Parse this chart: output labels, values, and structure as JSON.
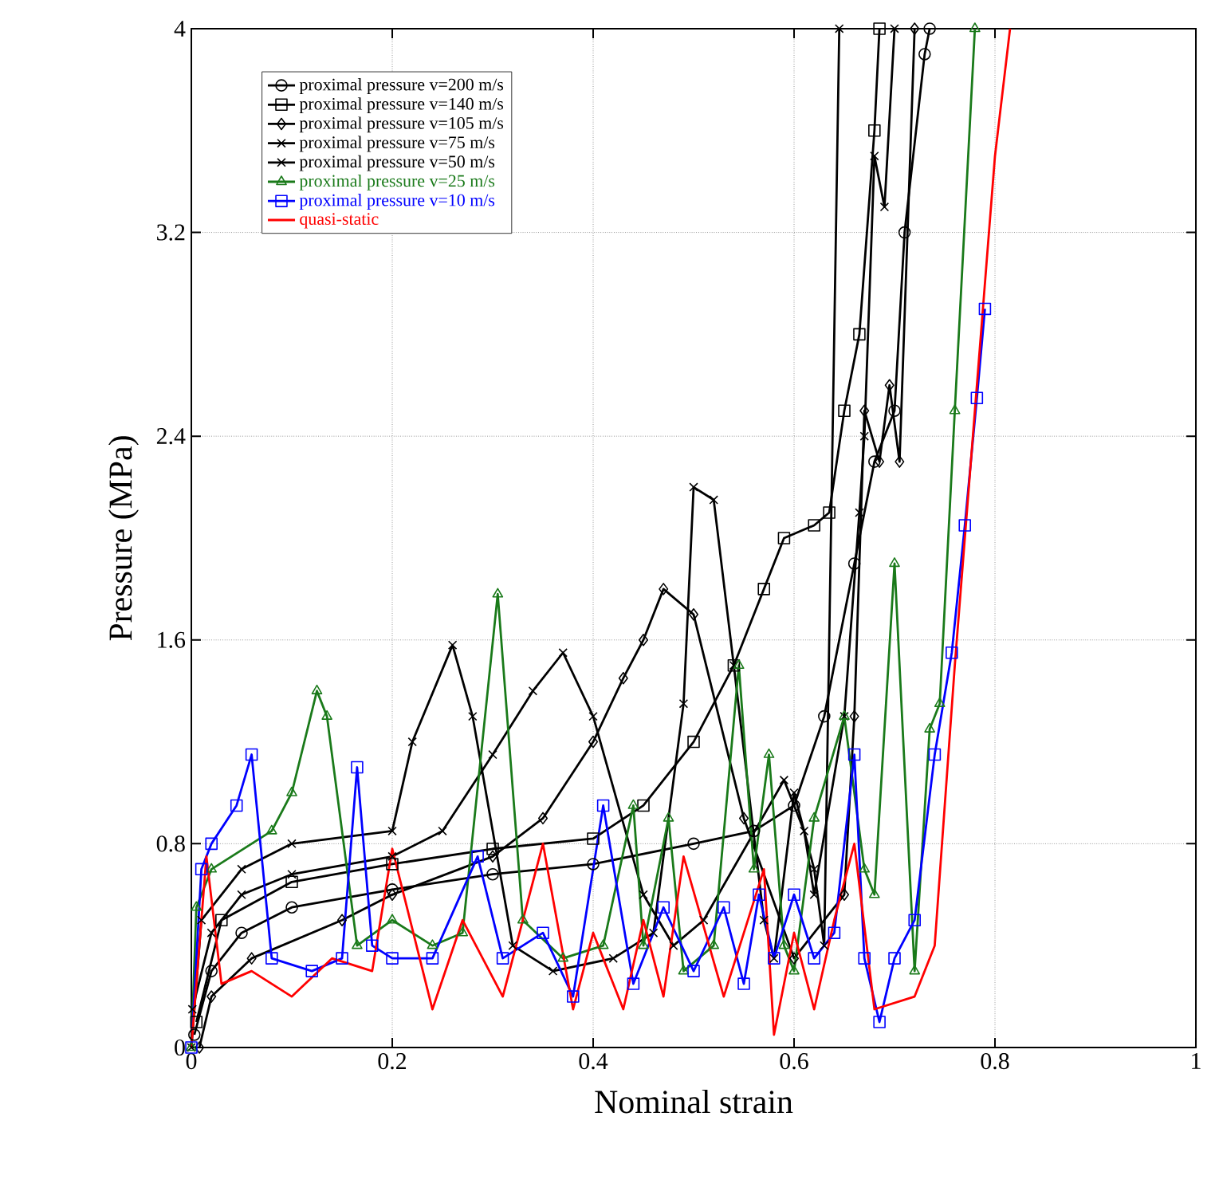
{
  "chart_data": {
    "type": "line",
    "xlabel": "Nominal strain",
    "ylabel": "Pressure (MPa)",
    "xlim": [
      0,
      1
    ],
    "ylim": [
      0,
      4
    ],
    "xticks": [
      0,
      0.2,
      0.4,
      0.6,
      0.8,
      1
    ],
    "yticks": [
      0,
      0.8,
      1.6,
      2.4,
      3.2,
      4
    ],
    "grid": true,
    "legend": "top left",
    "line_style": "solid",
    "series": [
      {
        "name": "proximal pressure v=200 m/s",
        "color": "#000000",
        "marker": "circle",
        "x": [
          0.003,
          0.02,
          0.05,
          0.1,
          0.2,
          0.3,
          0.4,
          0.5,
          0.56,
          0.6,
          0.63,
          0.66,
          0.68,
          0.7,
          0.71,
          0.73,
          0.735
        ],
        "values": [
          0.05,
          0.3,
          0.45,
          0.55,
          0.62,
          0.68,
          0.72,
          0.8,
          0.85,
          0.95,
          1.3,
          1.9,
          2.3,
          2.5,
          3.2,
          3.9,
          4
        ]
      },
      {
        "name": "proximal pressure v=140 m/s",
        "color": "#000000",
        "marker": "square",
        "x": [
          0.005,
          0.03,
          0.1,
          0.2,
          0.3,
          0.4,
          0.45,
          0.5,
          0.54,
          0.57,
          0.59,
          0.62,
          0.635,
          0.65,
          0.665,
          0.68,
          0.685
        ],
        "values": [
          0.1,
          0.5,
          0.65,
          0.72,
          0.78,
          0.82,
          0.95,
          1.2,
          1.5,
          1.8,
          2.0,
          2.05,
          2.1,
          2.5,
          2.8,
          3.6,
          4
        ]
      },
      {
        "name": "proximal pressure v=105 m/s",
        "color": "#000000",
        "marker": "diamond",
        "x": [
          0.008,
          0.02,
          0.06,
          0.15,
          0.2,
          0.3,
          0.35,
          0.4,
          0.43,
          0.45,
          0.47,
          0.5,
          0.55,
          0.6,
          0.65,
          0.66,
          0.67,
          0.685,
          0.695,
          0.705,
          0.72
        ],
        "values": [
          0,
          0.2,
          0.35,
          0.5,
          0.6,
          0.75,
          0.9,
          1.2,
          1.45,
          1.6,
          1.8,
          1.7,
          0.9,
          0.35,
          0.6,
          1.3,
          2.5,
          2.3,
          2.6,
          2.3,
          4
        ]
      },
      {
        "name": "proximal pressure v=75 m/s",
        "color": "#000000",
        "marker": "cross",
        "x": [
          0.001,
          0.02,
          0.05,
          0.1,
          0.2,
          0.25,
          0.3,
          0.34,
          0.37,
          0.4,
          0.45,
          0.48,
          0.51,
          0.59,
          0.61,
          0.62,
          0.65,
          0.665,
          0.67,
          0.68,
          0.69,
          0.7
        ],
        "values": [
          0.15,
          0.45,
          0.6,
          0.68,
          0.75,
          0.85,
          1.15,
          1.4,
          1.55,
          1.3,
          0.6,
          0.4,
          0.5,
          1.05,
          0.85,
          0.6,
          1.3,
          2.1,
          2.4,
          3.5,
          3.3,
          4
        ]
      },
      {
        "name": "proximal pressure v=50 m/s",
        "color": "#000000",
        "marker": "cross",
        "x": [
          0,
          0.01,
          0.05,
          0.1,
          0.2,
          0.22,
          0.26,
          0.28,
          0.32,
          0.36,
          0.42,
          0.46,
          0.49,
          0.5,
          0.52,
          0.54,
          0.57,
          0.58,
          0.6,
          0.62,
          0.63,
          0.645
        ],
        "values": [
          0,
          0.5,
          0.7,
          0.8,
          0.85,
          1.2,
          1.58,
          1.3,
          0.4,
          0.3,
          0.35,
          0.45,
          1.35,
          2.2,
          2.15,
          1.5,
          0.5,
          0.35,
          1.0,
          0.7,
          0.4,
          4
        ]
      },
      {
        "name": "proximal pressure v=25 m/s",
        "color": "#1a7a1a",
        "marker": "triangle",
        "x": [
          0,
          0.005,
          0.02,
          0.08,
          0.1,
          0.125,
          0.135,
          0.165,
          0.2,
          0.24,
          0.27,
          0.305,
          0.33,
          0.37,
          0.41,
          0.44,
          0.45,
          0.475,
          0.49,
          0.52,
          0.545,
          0.56,
          0.575,
          0.59,
          0.6,
          0.62,
          0.65,
          0.67,
          0.68,
          0.7,
          0.72,
          0.735,
          0.745,
          0.76,
          0.78
        ],
        "values": [
          0,
          0.55,
          0.7,
          0.85,
          1.0,
          1.4,
          1.3,
          0.4,
          0.5,
          0.4,
          0.45,
          1.78,
          0.5,
          0.35,
          0.4,
          0.95,
          0.4,
          0.9,
          0.3,
          0.4,
          1.5,
          0.7,
          1.15,
          0.4,
          0.3,
          0.9,
          1.3,
          0.7,
          0.6,
          1.9,
          0.3,
          1.25,
          1.35,
          2.5,
          4
        ]
      },
      {
        "name": "proximal pressure v=10 m/s",
        "color": "#0000ff",
        "marker": "square",
        "x": [
          0,
          0.01,
          0.02,
          0.045,
          0.06,
          0.08,
          0.12,
          0.15,
          0.165,
          0.18,
          0.2,
          0.24,
          0.285,
          0.31,
          0.35,
          0.38,
          0.41,
          0.44,
          0.47,
          0.5,
          0.53,
          0.55,
          0.565,
          0.58,
          0.6,
          0.62,
          0.64,
          0.66,
          0.67,
          0.685,
          0.7,
          0.72,
          0.74,
          0.757,
          0.77,
          0.782,
          0.79
        ],
        "values": [
          0,
          0.7,
          0.8,
          0.95,
          1.15,
          0.35,
          0.3,
          0.35,
          1.1,
          0.4,
          0.35,
          0.35,
          0.75,
          0.35,
          0.45,
          0.2,
          0.95,
          0.25,
          0.55,
          0.3,
          0.55,
          0.25,
          0.6,
          0.35,
          0.6,
          0.35,
          0.45,
          1.15,
          0.35,
          0.1,
          0.35,
          0.5,
          1.15,
          1.55,
          2.05,
          2.55,
          2.9
        ]
      },
      {
        "name": "quasi-static",
        "color": "#ff0000",
        "marker": "none",
        "x": [
          0,
          0.015,
          0.03,
          0.06,
          0.1,
          0.14,
          0.18,
          0.2,
          0.24,
          0.27,
          0.31,
          0.35,
          0.38,
          0.4,
          0.43,
          0.45,
          0.47,
          0.49,
          0.53,
          0.57,
          0.58,
          0.6,
          0.62,
          0.64,
          0.66,
          0.68,
          0.72,
          0.74,
          0.76,
          0.78,
          0.8,
          0.815
        ],
        "values": [
          0,
          0.75,
          0.25,
          0.3,
          0.2,
          0.35,
          0.3,
          0.78,
          0.15,
          0.5,
          0.2,
          0.8,
          0.15,
          0.45,
          0.15,
          0.5,
          0.2,
          0.75,
          0.2,
          0.7,
          0.05,
          0.45,
          0.15,
          0.5,
          0.8,
          0.15,
          0.2,
          0.4,
          1.5,
          2.5,
          3.5,
          4
        ]
      }
    ]
  }
}
